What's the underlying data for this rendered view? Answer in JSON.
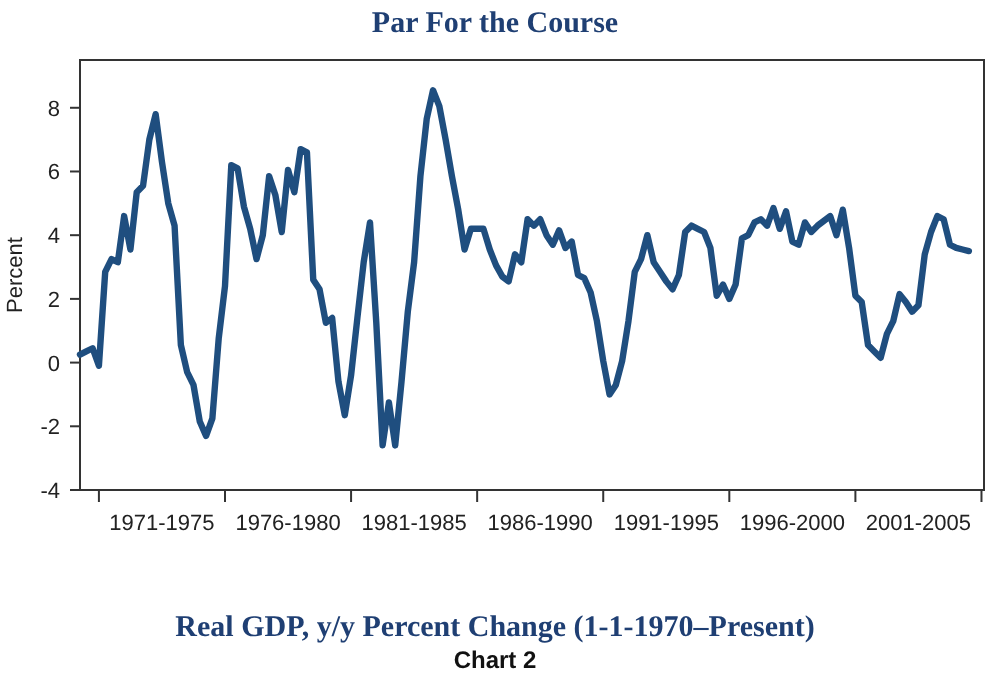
{
  "chart_data": {
    "type": "line",
    "title": "Par For the Course",
    "subtitle": "Real GDP, y/y Percent Change (1-1-1970–Present)",
    "annotations": [
      "Chart 2"
    ],
    "ylabel": "Percent",
    "ylim": [
      -4,
      9.5
    ],
    "yticks": [
      -4,
      -2,
      0,
      2,
      4,
      6,
      8
    ],
    "categories": [
      null,
      null,
      null,
      null,
      null,
      null,
      null,
      null,
      null,
      null,
      null,
      null,
      null,
      "1971-1975",
      null,
      null,
      null,
      null,
      null,
      null,
      null,
      null,
      null,
      null,
      null,
      null,
      null,
      null,
      null,
      null,
      null,
      null,
      null,
      "1976-1980",
      null,
      null,
      null,
      null,
      null,
      null,
      null,
      null,
      null,
      null,
      null,
      null,
      null,
      null,
      null,
      null,
      null,
      null,
      null,
      "1981-1985",
      null,
      null,
      null,
      null,
      null,
      null,
      null,
      null,
      null,
      null,
      null,
      null,
      null,
      null,
      null,
      null,
      null,
      null,
      null,
      "1986-1990",
      null,
      null,
      null,
      null,
      null,
      null,
      null,
      null,
      null,
      null,
      null,
      null,
      null,
      null,
      null,
      null,
      null,
      null,
      null,
      "1991-1995",
      null,
      null,
      null,
      null,
      null,
      null,
      null,
      null,
      null,
      null,
      null,
      null,
      null,
      null,
      null,
      null,
      null,
      null,
      null,
      "1996-2000",
      null,
      null,
      null,
      null,
      null,
      null,
      null,
      null,
      null,
      null,
      null,
      null,
      null,
      null,
      null,
      null,
      null,
      null,
      null,
      "2001-2005",
      null,
      null,
      null,
      null,
      null,
      null,
      null,
      null
    ],
    "grid": false,
    "marker": "none",
    "line_style": "solid",
    "series": [
      {
        "color": "#1f4e7f",
        "values": [
          0.25,
          0.35,
          0.45,
          -0.1,
          2.85,
          3.25,
          3.15,
          4.6,
          3.55,
          5.35,
          5.55,
          7.0,
          7.8,
          6.3,
          5.0,
          4.3,
          0.55,
          -0.3,
          -0.7,
          -1.85,
          -2.3,
          -1.75,
          0.75,
          2.4,
          6.2,
          6.1,
          4.9,
          4.2,
          3.25,
          4.0,
          5.85,
          5.25,
          4.1,
          6.05,
          5.35,
          6.7,
          6.6,
          2.6,
          2.3,
          1.25,
          1.4,
          -0.6,
          -1.65,
          -0.4,
          1.4,
          3.15,
          4.4,
          1.25,
          -2.6,
          -1.25,
          -2.6,
          -0.6,
          1.6,
          3.15,
          5.85,
          7.65,
          8.55,
          8.05,
          7.0,
          5.85,
          4.8,
          3.55,
          4.2,
          4.2,
          4.2,
          3.55,
          3.05,
          2.7,
          2.55,
          3.4,
          3.15,
          4.5,
          4.3,
          4.5,
          4.0,
          3.7,
          4.15,
          3.6,
          3.8,
          2.75,
          2.65,
          2.2,
          1.3,
          0.05,
          -1.0,
          -0.7,
          0.05,
          1.3,
          2.85,
          3.25,
          4.0,
          3.15,
          2.85,
          2.55,
          2.3,
          2.75,
          4.1,
          4.3,
          4.2,
          4.1,
          3.6,
          2.1,
          2.45,
          2.0,
          2.45,
          3.9,
          4.0,
          4.4,
          4.5,
          4.3,
          4.85,
          4.2,
          4.75,
          3.8,
          3.7,
          4.4,
          4.1,
          4.3,
          4.45,
          4.6,
          4.0,
          4.8,
          3.6,
          2.1,
          1.9,
          0.55,
          0.35,
          0.15,
          0.9,
          1.3,
          2.15,
          1.9,
          1.6,
          1.8,
          3.4,
          4.1,
          4.6,
          4.5,
          3.7,
          3.6,
          3.55,
          3.5
        ]
      }
    ]
  }
}
